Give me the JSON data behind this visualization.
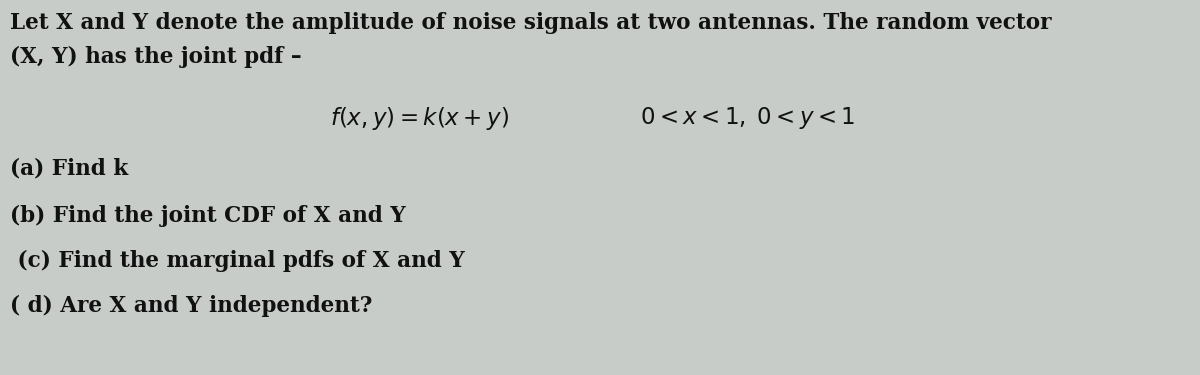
{
  "bg_color": "#c8ccc8",
  "text_color": "#111111",
  "line1": "Let X and Y denote the amplitude of noise signals at two antennas. The random vector",
  "line2": "(X, Y) has the joint pdf –",
  "formula": "$f(x, y) = k(x + y)$",
  "condition": "$0 < x <1,\\; 0 < y < 1$",
  "qa": "(a) Find k",
  "qb": "(b) Find the joint CDF of X and Y",
  "qc": " (c) Find the marginal pdfs of X and Y",
  "qd": "( d) Are X and Y independent?",
  "font_size_body": 15.5,
  "font_size_formula": 16.5,
  "font_size_questions": 15.5,
  "fig_width": 12.0,
  "fig_height": 3.75,
  "dpi": 100
}
